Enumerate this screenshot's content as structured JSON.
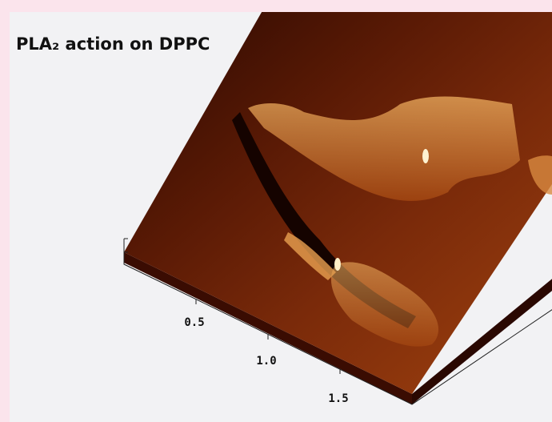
{
  "image": {
    "title": "PLA₂ action on DPPC",
    "axis_labels": [
      "0.5",
      "1.0",
      "1.5"
    ]
  }
}
